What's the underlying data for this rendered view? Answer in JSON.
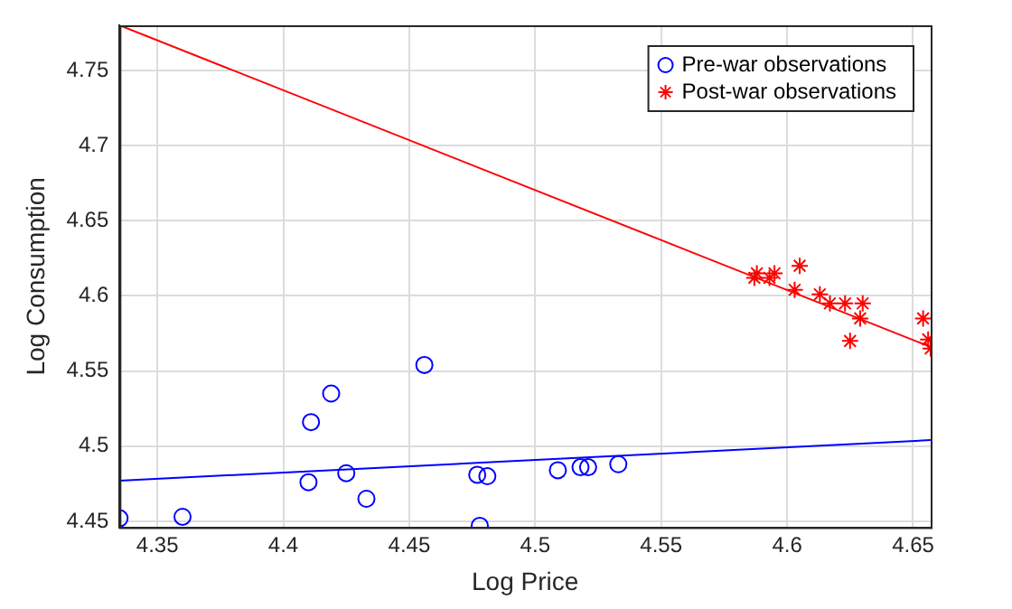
{
  "chart_data": {
    "type": "scatter",
    "xlabel": "Log Price",
    "ylabel": "Log Consumption",
    "xlim": [
      4.335,
      4.657
    ],
    "ylim": [
      4.446,
      4.78
    ],
    "xticks": [
      4.35,
      4.4,
      4.45,
      4.5,
      4.55,
      4.6,
      4.65
    ],
    "yticks": [
      4.45,
      4.5,
      4.55,
      4.6,
      4.65,
      4.7,
      4.75
    ],
    "grid": true,
    "legend": "top right",
    "series": [
      {
        "name": "Pre-war observations",
        "marker": "circle",
        "color": "#0000ff",
        "x": [
          4.335,
          4.36,
          4.41,
          4.411,
          4.419,
          4.425,
          4.433,
          4.456,
          4.477,
          4.478,
          4.481,
          4.509,
          4.518,
          4.521,
          4.533
        ],
        "values": [
          4.452,
          4.453,
          4.476,
          4.516,
          4.535,
          4.482,
          4.465,
          4.554,
          4.481,
          4.447,
          4.48,
          4.484,
          4.486,
          4.486,
          4.488
        ]
      },
      {
        "name": "Post-war observations",
        "marker": "cross",
        "color": "#ff0000",
        "x": [
          4.587,
          4.588,
          4.593,
          4.595,
          4.605,
          4.603,
          4.613,
          4.617,
          4.623,
          4.63,
          4.629,
          4.625,
          4.654,
          4.656,
          4.657
        ],
        "values": [
          4.612,
          4.615,
          4.612,
          4.615,
          4.62,
          4.604,
          4.601,
          4.595,
          4.595,
          4.595,
          4.585,
          4.57,
          4.585,
          4.571,
          4.565
        ]
      },
      {
        "type": "line",
        "marker": "none",
        "color": "#0000ff",
        "x": [
          4.335,
          4.657
        ],
        "values": [
          4.477,
          4.504
        ]
      },
      {
        "type": "line",
        "marker": "none",
        "color": "#ff0000",
        "x": [
          4.335,
          4.657
        ],
        "values": [
          4.78,
          4.566
        ]
      }
    ]
  }
}
